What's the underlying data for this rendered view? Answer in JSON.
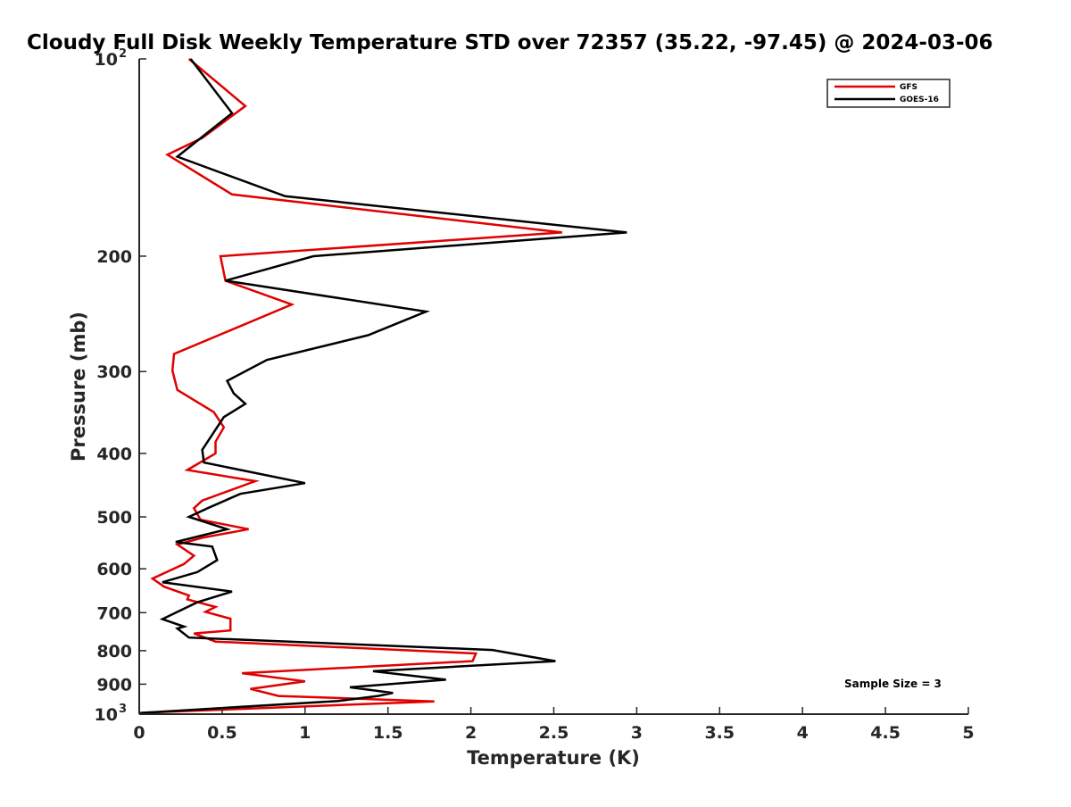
{
  "chart_data": {
    "type": "line",
    "title": "Cloudy Full Disk Weekly Temperature STD over 72357 (35.22, -97.45) @ 2024-03-06",
    "xlabel": "Temperature (K)",
    "ylabel": "Pressure (mb)",
    "xlim": [
      0,
      5
    ],
    "ylim": [
      100,
      1000
    ],
    "y_scale": "log",
    "y_reversed": true,
    "grid": false,
    "legend_position": "top-right",
    "annotation": "Sample Size = 3",
    "x_ticks": [
      {
        "value": 0,
        "label": "0"
      },
      {
        "value": 0.5,
        "label": "0.5"
      },
      {
        "value": 1,
        "label": "1"
      },
      {
        "value": 1.5,
        "label": "1.5"
      },
      {
        "value": 2,
        "label": "2"
      },
      {
        "value": 2.5,
        "label": "2.5"
      },
      {
        "value": 3,
        "label": "3"
      },
      {
        "value": 3.5,
        "label": "3.5"
      },
      {
        "value": 4,
        "label": "4"
      },
      {
        "value": 4.5,
        "label": "4.5"
      },
      {
        "value": 5,
        "label": "5"
      }
    ],
    "y_ticks": [
      {
        "value": 100,
        "base": "10",
        "exp": "2"
      },
      {
        "value": 200,
        "base": "200",
        "exp": ""
      },
      {
        "value": 300,
        "base": "300",
        "exp": ""
      },
      {
        "value": 400,
        "base": "400",
        "exp": ""
      },
      {
        "value": 500,
        "base": "500",
        "exp": ""
      },
      {
        "value": 600,
        "base": "600",
        "exp": ""
      },
      {
        "value": 700,
        "base": "700",
        "exp": ""
      },
      {
        "value": 800,
        "base": "800",
        "exp": ""
      },
      {
        "value": 900,
        "base": "900",
        "exp": ""
      },
      {
        "value": 1000,
        "base": "10",
        "exp": "3"
      }
    ],
    "series": [
      {
        "name": "GFS",
        "color": "#e00000",
        "points": [
          [
            0.3,
            100
          ],
          [
            0.64,
            118
          ],
          [
            0.38,
            132
          ],
          [
            0.17,
            140
          ],
          [
            0.56,
            161
          ],
          [
            2.55,
            184
          ],
          [
            0.49,
            200
          ],
          [
            0.52,
            218
          ],
          [
            0.92,
            237
          ],
          [
            0.21,
            282
          ],
          [
            0.2,
            299
          ],
          [
            0.23,
            320
          ],
          [
            0.45,
            346
          ],
          [
            0.51,
            365
          ],
          [
            0.46,
            384
          ],
          [
            0.46,
            400
          ],
          [
            0.29,
            424
          ],
          [
            0.7,
            441
          ],
          [
            0.38,
            472
          ],
          [
            0.33,
            485
          ],
          [
            0.37,
            505
          ],
          [
            0.66,
            522
          ],
          [
            0.38,
            538
          ],
          [
            0.23,
            551
          ],
          [
            0.33,
            573
          ],
          [
            0.27,
            590
          ],
          [
            0.08,
            621
          ],
          [
            0.15,
            639
          ],
          [
            0.3,
            659
          ],
          [
            0.29,
            668
          ],
          [
            0.46,
            686
          ],
          [
            0.4,
            698
          ],
          [
            0.55,
            715
          ],
          [
            0.55,
            745
          ],
          [
            0.33,
            753
          ],
          [
            0.46,
            775
          ],
          [
            2.03,
            808
          ],
          [
            2.01,
            830
          ],
          [
            0.62,
            866
          ],
          [
            1.0,
            891
          ],
          [
            0.67,
            915
          ],
          [
            0.84,
            938
          ],
          [
            1.78,
            956
          ],
          [
            0.02,
            995
          ]
        ]
      },
      {
        "name": "GOES-16",
        "color": "#000000",
        "points": [
          [
            0.31,
            100
          ],
          [
            0.56,
            121
          ],
          [
            0.23,
            141
          ],
          [
            0.88,
            162
          ],
          [
            2.94,
            184
          ],
          [
            1.05,
            200
          ],
          [
            0.52,
            218
          ],
          [
            1.73,
            243
          ],
          [
            1.38,
            264
          ],
          [
            0.77,
            288
          ],
          [
            0.53,
            310
          ],
          [
            0.57,
            324
          ],
          [
            0.64,
            336
          ],
          [
            0.51,
            352
          ],
          [
            0.38,
            395
          ],
          [
            0.39,
            413
          ],
          [
            1.0,
            444
          ],
          [
            0.61,
            461
          ],
          [
            0.42,
            484
          ],
          [
            0.3,
            500
          ],
          [
            0.53,
            522
          ],
          [
            0.22,
            546
          ],
          [
            0.44,
            555
          ],
          [
            0.47,
            582
          ],
          [
            0.35,
            607
          ],
          [
            0.14,
            629
          ],
          [
            0.56,
            650
          ],
          [
            0.35,
            675
          ],
          [
            0.14,
            716
          ],
          [
            0.27,
            735
          ],
          [
            0.23,
            740
          ],
          [
            0.3,
            764
          ],
          [
            2.13,
            798
          ],
          [
            2.51,
            830
          ],
          [
            1.41,
            860
          ],
          [
            1.85,
            886
          ],
          [
            1.27,
            910
          ],
          [
            1.53,
            928
          ],
          [
            1.44,
            938
          ],
          [
            1.2,
            955
          ],
          [
            0.0,
            996
          ]
        ]
      }
    ]
  }
}
